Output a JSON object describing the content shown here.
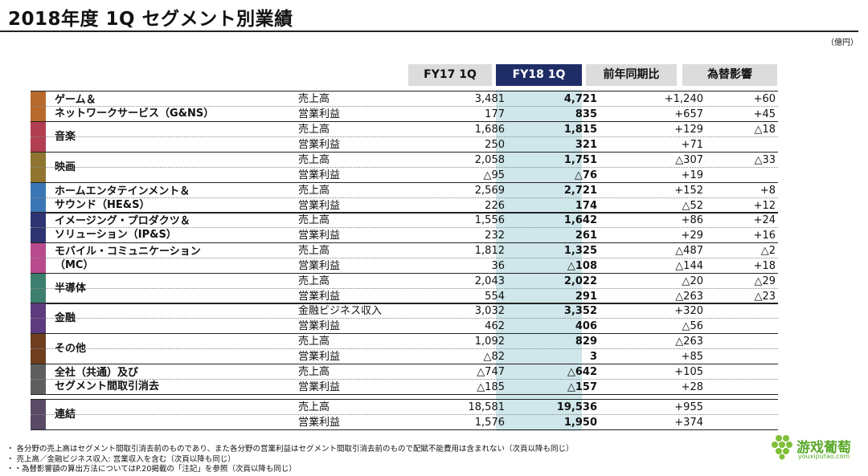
{
  "title": "2018年度 1Q セグメント別業績",
  "unit": "（億円）",
  "headers": [
    "FY17 1Q",
    "FY18 1Q",
    "前年同期比",
    "為替影響"
  ],
  "segments": [
    {
      "name_lines": [
        "ゲーム＆",
        "ネットワークサービス（G&NS）"
      ],
      "color": "#b86a2c",
      "rows": [
        {
          "label": "売上高",
          "fy17": "3,481",
          "fy18": "4,721",
          "yoy": "+1,240",
          "fx": "+60"
        },
        {
          "label": "営業利益",
          "fy17": "177",
          "fy18": "835",
          "yoy": "+657",
          "fx": "+45"
        }
      ]
    },
    {
      "name_lines": [
        "音楽"
      ],
      "color": "#b23e51",
      "rows": [
        {
          "label": "売上高",
          "fy17": "1,686",
          "fy18": "1,815",
          "yoy": "+129",
          "fx": "△18"
        },
        {
          "label": "営業利益",
          "fy17": "250",
          "fy18": "321",
          "yoy": "+71",
          "fx": ""
        }
      ]
    },
    {
      "name_lines": [
        "映画"
      ],
      "color": "#8f7530",
      "rows": [
        {
          "label": "売上高",
          "fy17": "2,058",
          "fy18": "1,751",
          "yoy": "△307",
          "fx": "△33"
        },
        {
          "label": "営業利益",
          "fy17": "△95",
          "fy18": "△76",
          "yoy": "+19",
          "fx": ""
        }
      ]
    },
    {
      "name_lines": [
        "ホームエンタテインメント＆",
        "サウンド（HE&S）"
      ],
      "color": "#3a76b5",
      "rows": [
        {
          "label": "売上高",
          "fy17": "2,569",
          "fy18": "2,721",
          "yoy": "+152",
          "fx": "+8"
        },
        {
          "label": "営業利益",
          "fy17": "226",
          "fy18": "174",
          "yoy": "△52",
          "fx": "+12"
        }
      ]
    },
    {
      "name_lines": [
        "イメージング・プロダクツ＆",
        "ソリューション（IP&S）"
      ],
      "color": "#2e3472",
      "rows": [
        {
          "label": "売上高",
          "fy17": "1,556",
          "fy18": "1,642",
          "yoy": "+86",
          "fx": "+24"
        },
        {
          "label": "営業利益",
          "fy17": "232",
          "fy18": "261",
          "yoy": "+29",
          "fx": "+16"
        }
      ]
    },
    {
      "name_lines": [
        "モバイル・コミュニケーション",
        "（MC）"
      ],
      "color": "#b94a8d",
      "rows": [
        {
          "label": "売上高",
          "fy17": "1,812",
          "fy18": "1,325",
          "yoy": "△487",
          "fx": "△2"
        },
        {
          "label": "営業利益",
          "fy17": "36",
          "fy18": "△108",
          "yoy": "△144",
          "fx": "+18"
        }
      ]
    },
    {
      "name_lines": [
        "半導体"
      ],
      "color": "#3c7f6e",
      "rows": [
        {
          "label": "売上高",
          "fy17": "2,043",
          "fy18": "2,022",
          "yoy": "△20",
          "fx": "△29"
        },
        {
          "label": "営業利益",
          "fy17": "554",
          "fy18": "291",
          "yoy": "△263",
          "fx": "△23"
        }
      ]
    },
    {
      "name_lines": [
        "金融"
      ],
      "color": "#5d3b7e",
      "rows": [
        {
          "label": "金融ビジネス収入",
          "fy17": "3,032",
          "fy18": "3,352",
          "yoy": "+320",
          "fx": ""
        },
        {
          "label": "営業利益",
          "fy17": "462",
          "fy18": "406",
          "yoy": "△56",
          "fx": ""
        }
      ]
    },
    {
      "name_lines": [
        "その他"
      ],
      "color": "#6e3e1e",
      "rows": [
        {
          "label": "売上高",
          "fy17": "1,092",
          "fy18": "829",
          "yoy": "△263",
          "fx": ""
        },
        {
          "label": "営業利益",
          "fy17": "△82",
          "fy18": "3",
          "yoy": "+85",
          "fx": ""
        }
      ]
    },
    {
      "name_lines": [
        "全社（共通）及び",
        "セグメント間取引消去"
      ],
      "color": "#5e5e5e",
      "rows": [
        {
          "label": "売上高",
          "fy17": "△747",
          "fy18": "△642",
          "yoy": "+105",
          "fx": ""
        },
        {
          "label": "営業利益",
          "fy17": "△185",
          "fy18": "△157",
          "yoy": "+28",
          "fx": ""
        }
      ]
    },
    {
      "name_lines": [
        "連結"
      ],
      "color": "#5a4a66",
      "rows": [
        {
          "label": "売上高",
          "fy17": "18,581",
          "fy18": "19,536",
          "yoy": "+955",
          "fx": ""
        },
        {
          "label": "営業利益",
          "fy17": "1,576",
          "fy18": "1,950",
          "yoy": "+374",
          "fx": ""
        }
      ]
    }
  ],
  "notes": [
    "・ 各分野の売上高はセグメント間取引消去前のものであり、また各分野の営業利益はセグメント間取引消去前のもので配賦不能費用は含まれない（次頁以降も同じ）",
    "・ 売上高／金融ビジネス収入: 営業収入を含む（次頁以降も同じ）",
    "・・為替影響額の算出方法についてはP.20掲載の「注記」を参照（次頁以降も同じ）"
  ],
  "logo": {
    "text": "游戏葡萄",
    "sub": "youxiputao.com",
    "color": "#58a828"
  }
}
